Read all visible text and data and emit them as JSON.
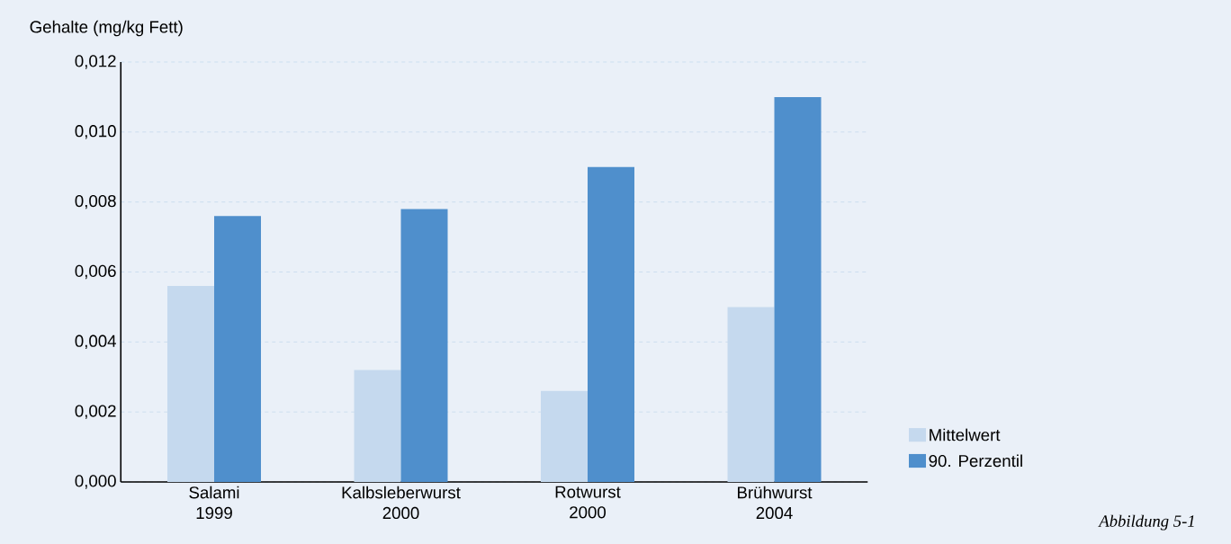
{
  "chart_data": {
    "type": "bar",
    "ylabel": "Gehalte (mg/kg Fett)",
    "categories": [
      "Salami 1999",
      "Kalbsleberwurst 2000",
      "Rotwurst 2000",
      "Brühwurst 2004"
    ],
    "series": [
      {
        "name": "Mittelwert",
        "color": "#c5d9ee",
        "values": [
          0.0056,
          0.0032,
          0.0026,
          0.005
        ]
      },
      {
        "name": "90. Perzentil",
        "color": "#4f8fcc",
        "values": [
          0.0076,
          0.0078,
          0.009,
          0.011
        ]
      }
    ],
    "ylim": [
      0,
      0.012
    ],
    "yticks": [
      {
        "value": 0,
        "label": "0,000"
      },
      {
        "value": 0.002,
        "label": "0,002"
      },
      {
        "value": 0.004,
        "label": "0,004"
      },
      {
        "value": 0.006,
        "label": "0,006"
      },
      {
        "value": 0.008,
        "label": "0,008"
      },
      {
        "value": 0.01,
        "label": "0,010"
      },
      {
        "value": 0.012,
        "label": "0,012"
      }
    ],
    "grid": "y",
    "legend": "bottom right",
    "annotations": [
      "Abbildung 5-1"
    ]
  }
}
